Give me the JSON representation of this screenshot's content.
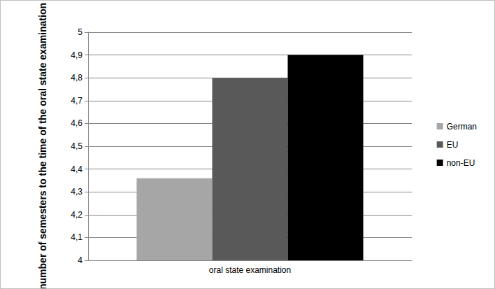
{
  "chart_data": {
    "type": "bar",
    "ylabel": "number of semesters to the time of the oral state examination",
    "categories": [
      "oral state examination"
    ],
    "series": [
      {
        "name": "German",
        "color": "#a6a6a6",
        "values": [
          4.36
        ]
      },
      {
        "name": "EU",
        "color": "#595959",
        "values": [
          4.8
        ]
      },
      {
        "name": "non-EU",
        "color": "#000000",
        "values": [
          4.9
        ]
      }
    ],
    "ylim": [
      4,
      5
    ],
    "yticks": [
      4,
      {
        "value": 4.1,
        "label": "4,1"
      },
      {
        "value": 4.2,
        "label": "4,2"
      },
      {
        "value": 4.3,
        "label": "4,3"
      },
      {
        "value": 4.4,
        "label": "4,4"
      },
      {
        "value": 4.5,
        "label": "4,5"
      },
      {
        "value": 4.6,
        "label": "4,6"
      },
      {
        "value": 4.7,
        "label": "4,7"
      },
      {
        "value": 4.8,
        "label": "4,8"
      },
      {
        "value": 4.9,
        "label": "4,9"
      },
      5
    ],
    "grid": true,
    "legend": "right"
  }
}
